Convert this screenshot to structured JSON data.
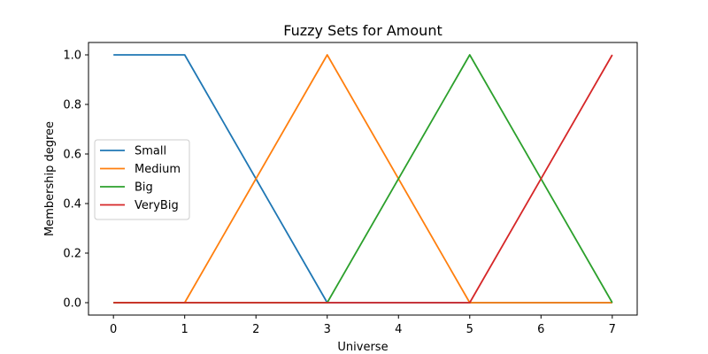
{
  "chart_data": {
    "type": "line",
    "title": "Fuzzy Sets for Amount",
    "xlabel": "Universe",
    "ylabel": "Membership degree",
    "xlim": [
      -0.35,
      7.35
    ],
    "ylim": [
      -0.05,
      1.05
    ],
    "xticks": [
      "0",
      "1",
      "2",
      "3",
      "4",
      "5",
      "6",
      "7"
    ],
    "yticks": [
      "0.0",
      "0.2",
      "0.4",
      "0.6",
      "0.8",
      "1.0"
    ],
    "grid": false,
    "legend_position": "center-left",
    "series": [
      {
        "name": "Small",
        "color": "#1f77b4",
        "x": [
          0,
          1,
          3,
          7
        ],
        "y": [
          1,
          1,
          0,
          0
        ]
      },
      {
        "name": "Medium",
        "color": "#ff7f0e",
        "x": [
          0,
          1,
          3,
          5,
          7
        ],
        "y": [
          0,
          0,
          1,
          0,
          0
        ]
      },
      {
        "name": "Big",
        "color": "#2ca02c",
        "x": [
          0,
          3,
          5,
          7
        ],
        "y": [
          0,
          0,
          1,
          0
        ]
      },
      {
        "name": "VeryBig",
        "color": "#d62728",
        "x": [
          0,
          5,
          7
        ],
        "y": [
          0,
          0,
          1
        ]
      }
    ]
  }
}
